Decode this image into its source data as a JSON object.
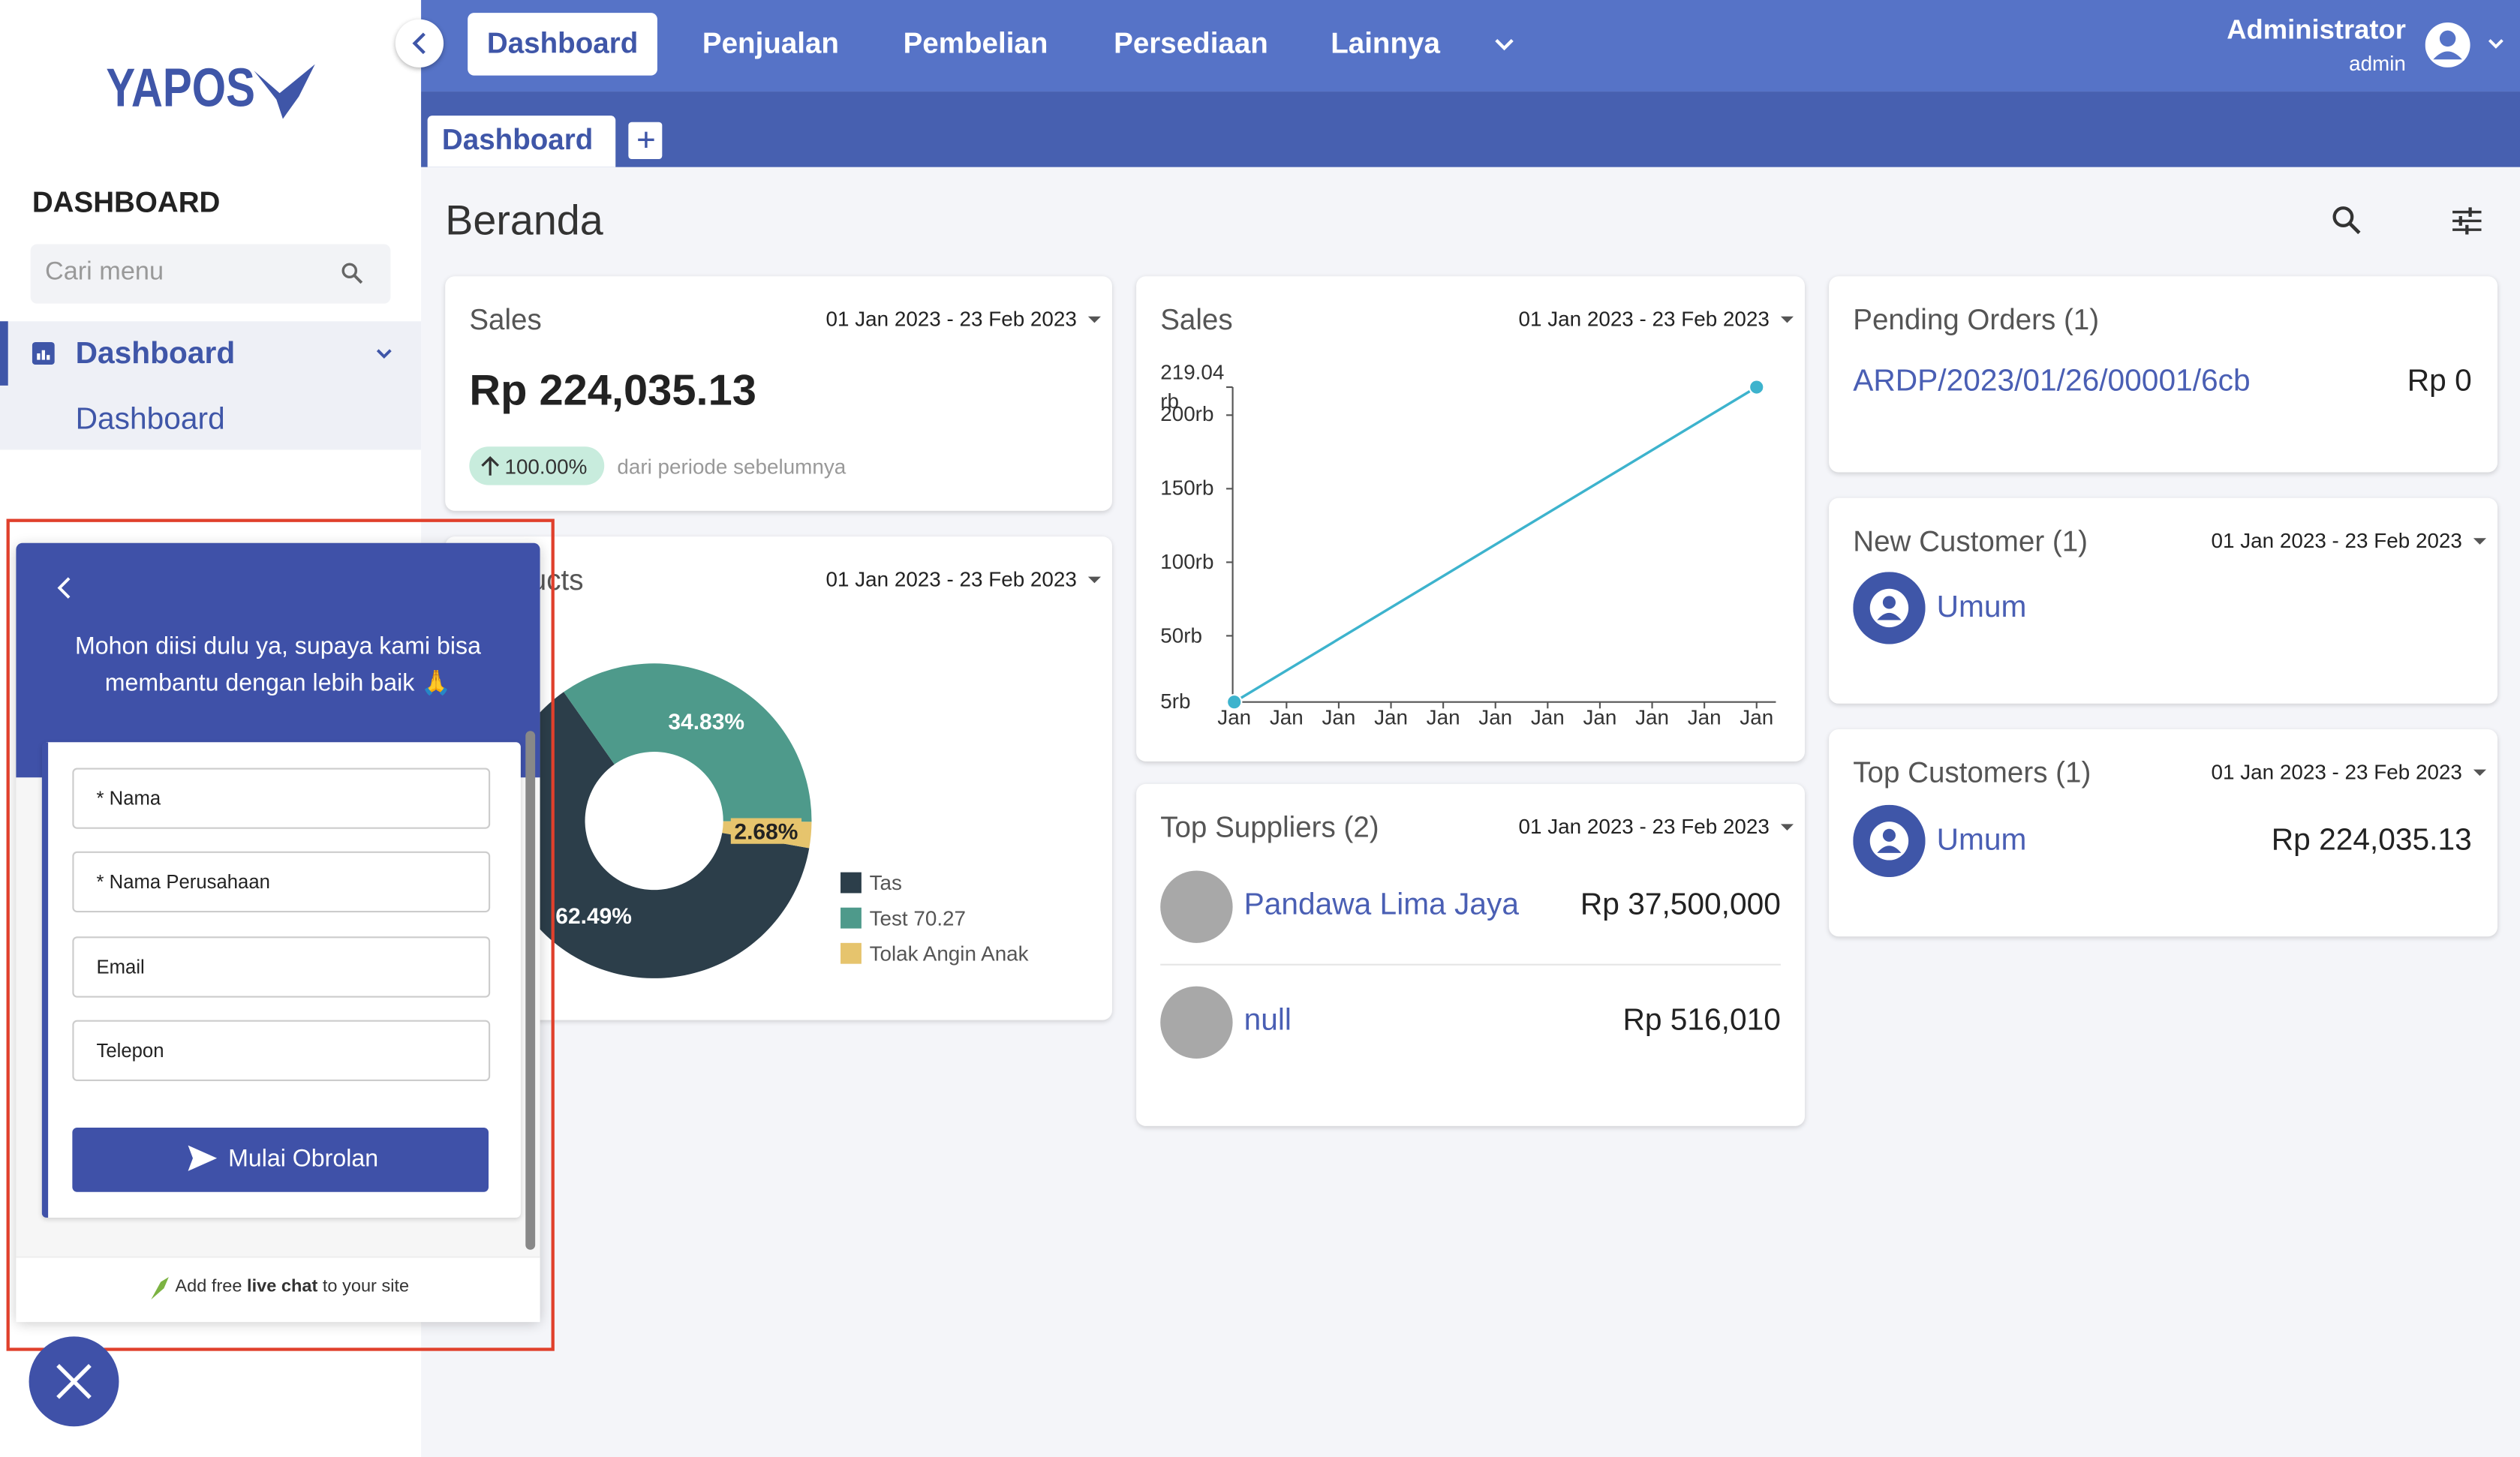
{
  "sidebar": {
    "logo": "YAPOS",
    "section": "DASHBOARD",
    "search_placeholder": "Cari menu",
    "menu": {
      "label": "Dashboard",
      "sub": "Dashboard"
    }
  },
  "topnav": {
    "items": [
      "Dashboard",
      "Penjualan",
      "Pembelian",
      "Persediaan",
      "Lainnya"
    ],
    "user": {
      "name": "Administrator",
      "role": "admin"
    }
  },
  "tabs": [
    "Dashboard"
  ],
  "page_title": "Beranda",
  "sales_summary": {
    "title": "Sales",
    "range": "01 Jan 2023 - 23 Feb 2023",
    "amount": "Rp 224,035.13",
    "change": "100.00%",
    "change_note": "dari periode sebelumnya"
  },
  "products_chart": {
    "type": "pie",
    "title": "Products",
    "range": "01 Jan 2023 - 23 Feb 2023",
    "categories": [
      "Tas",
      "Test 70.27",
      "Tolak Angin Anak"
    ],
    "values": [
      62.49,
      34.83,
      2.68
    ],
    "value_labels": [
      "62.49%",
      "34.83%",
      "2.68%"
    ],
    "colors": [
      "#2c3e4a",
      "#4e9a8b",
      "#e6c46d"
    ]
  },
  "sales_chart": {
    "type": "line",
    "title": "Sales",
    "range": "01 Jan 2023 - 23 Feb 2023",
    "x": [
      0,
      10
    ],
    "values": [
      5,
      219.04
    ],
    "color": "#3db3cd",
    "xlim": [
      0,
      10
    ],
    "xticks": [
      {
        "value": 0,
        "label": "Jan"
      },
      {
        "value": 1,
        "label": "Jan"
      },
      {
        "value": 2,
        "label": "Jan"
      },
      {
        "value": 3,
        "label": "Jan"
      },
      {
        "value": 4,
        "label": "Jan"
      },
      {
        "value": 5,
        "label": "Jan"
      },
      {
        "value": 6,
        "label": "Jan"
      },
      {
        "value": 7,
        "label": "Jan"
      },
      {
        "value": 8,
        "label": "Jan"
      },
      {
        "value": 9,
        "label": "Jan"
      },
      {
        "value": 10,
        "label": "Jan"
      }
    ],
    "ylim": [
      5,
      219.04
    ],
    "yticks": [
      {
        "value": 5,
        "label": "5rb"
      },
      {
        "value": 50,
        "label": "50rb"
      },
      {
        "value": 100,
        "label": "100rb"
      },
      {
        "value": 150,
        "label": "150rb"
      },
      {
        "value": 200,
        "label": "200rb"
      },
      {
        "value": 219.04,
        "label": "219.04 rb"
      }
    ]
  },
  "top_suppliers": {
    "title": "Top Suppliers (2)",
    "range": "01 Jan 2023 - 23 Feb 2023",
    "rows": [
      {
        "name": "Pandawa Lima Jaya",
        "amount": "Rp 37,500,000"
      },
      {
        "name": "null",
        "amount": "Rp 516,010"
      }
    ]
  },
  "pending_orders": {
    "title": "Pending Orders (1)",
    "rows": [
      {
        "id": "ARDP/2023/01/26/00001/6cb",
        "amount": "Rp 0"
      }
    ]
  },
  "new_customer": {
    "title": "New Customer (1)",
    "range": "01 Jan 2023 - 23 Feb 2023",
    "name": "Umum"
  },
  "top_customers": {
    "title": "Top Customers (1)",
    "range": "01 Jan 2023 - 23 Feb 2023",
    "name": "Umum",
    "amount": "Rp 224,035.13"
  },
  "chat": {
    "intro": "Mohon diisi dulu ya, supaya kami bisa membantu dengan lebih baik 🙏",
    "fields": [
      "* Nama",
      "* Nama Perusahaan",
      "Email",
      "Telepon"
    ],
    "button": "Mulai Obrolan",
    "footer": [
      "Add free ",
      "live chat",
      " to your site"
    ]
  }
}
